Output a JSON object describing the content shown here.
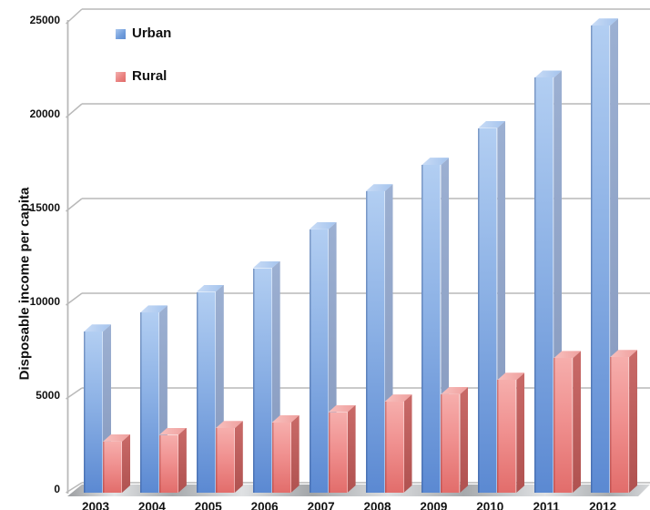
{
  "chart_data": {
    "type": "bar",
    "style": "3d-clustered-column",
    "title": "",
    "xlabel": "",
    "ylabel": "Disposable income per capita",
    "categories": [
      "2003",
      "2004",
      "2005",
      "2006",
      "2007",
      "2008",
      "2009",
      "2010",
      "2011",
      "2012"
    ],
    "series": [
      {
        "name": "Urban",
        "color": "#6f9cdb",
        "values": [
          8500,
          9500,
          10600,
          11850,
          13900,
          15900,
          17300,
          19250,
          21900,
          24650
        ]
      },
      {
        "name": "Rural",
        "color": "#e97f7d",
        "values": [
          2700,
          3050,
          3400,
          3700,
          4250,
          4800,
          5200,
          5950,
          7100,
          7150
        ]
      }
    ],
    "ylim": [
      0,
      25000
    ],
    "yticks": [
      0,
      5000,
      10000,
      15000,
      20000,
      25000
    ],
    "grid": true,
    "gridline_color": "#b9b9b9",
    "floor_color": "#c0c0c0",
    "legend_position": "top-left-inside",
    "legend": [
      "Urban",
      "Rural"
    ]
  }
}
